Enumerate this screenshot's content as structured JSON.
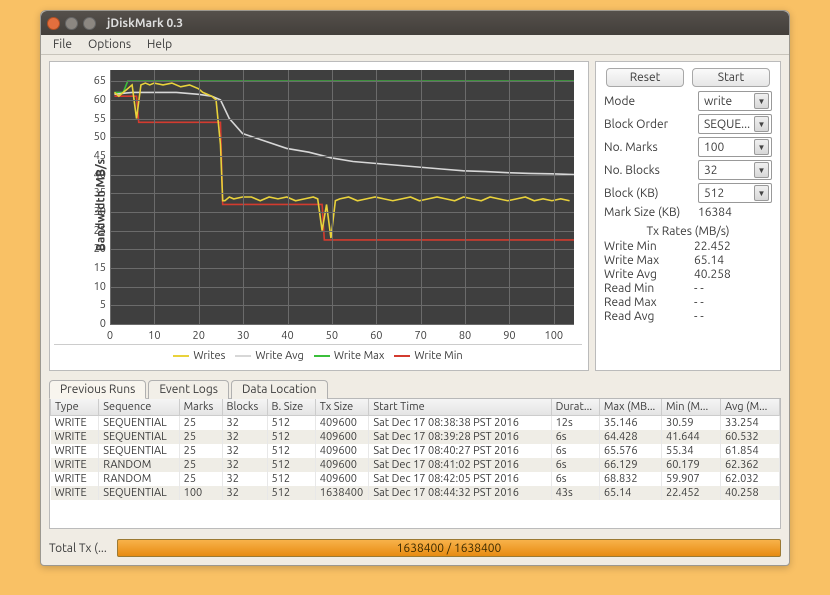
{
  "window": {
    "title": "jDiskMark 0.3"
  },
  "menu": {
    "file": "File",
    "options": "Options",
    "help": "Help"
  },
  "buttons": {
    "reset": "Reset",
    "start": "Start"
  },
  "form": {
    "mode_label": "Mode",
    "mode_value": "write",
    "block_order_label": "Block Order",
    "block_order_value": "SEQUE...",
    "no_marks_label": "No. Marks",
    "no_marks_value": "100",
    "no_blocks_label": "No. Blocks",
    "no_blocks_value": "32",
    "block_kb_label": "Block (KB)",
    "block_kb_value": "512",
    "mark_size_label": "Mark Size (KB)",
    "mark_size_value": "16384"
  },
  "rates": {
    "heading": "Tx Rates (MB/s)",
    "write_min_k": "Write Min",
    "write_min_v": "22.452",
    "write_max_k": "Write Max",
    "write_max_v": "65.14",
    "write_avg_k": "Write Avg",
    "write_avg_v": "40.258",
    "read_min_k": "Read Min",
    "read_min_v": "- -",
    "read_max_k": "Read Max",
    "read_max_v": "- -",
    "read_avg_k": "Read Avg",
    "read_avg_v": "- -"
  },
  "tabs": {
    "prev": "Previous Runs",
    "logs": "Event Logs",
    "loc": "Data Location"
  },
  "table": {
    "cols": [
      "Type",
      "Sequence",
      "Marks",
      "Blocks",
      "B. Size",
      "Tx Size",
      "Start Time",
      "Durat...",
      "Max (MB...",
      "Min (M...",
      "Avg (M..."
    ],
    "widths": [
      45,
      75,
      40,
      42,
      45,
      50,
      170,
      45,
      58,
      55,
      55
    ],
    "rows": [
      [
        "WRITE",
        "SEQUENTIAL",
        "25",
        "32",
        "512",
        "409600",
        "Sat Dec 17 08:38:38 PST 2016",
        "12s",
        "35.146",
        "30.59",
        "33.254"
      ],
      [
        "WRITE",
        "SEQUENTIAL",
        "25",
        "32",
        "512",
        "409600",
        "Sat Dec 17 08:39:28 PST 2016",
        "6s",
        "64.428",
        "41.644",
        "60.532"
      ],
      [
        "WRITE",
        "SEQUENTIAL",
        "25",
        "32",
        "512",
        "409600",
        "Sat Dec 17 08:40:27 PST 2016",
        "6s",
        "65.576",
        "55.34",
        "61.854"
      ],
      [
        "WRITE",
        "RANDOM",
        "25",
        "32",
        "512",
        "409600",
        "Sat Dec 17 08:41:02 PST 2016",
        "6s",
        "66.129",
        "60.179",
        "62.362"
      ],
      [
        "WRITE",
        "RANDOM",
        "25",
        "32",
        "512",
        "409600",
        "Sat Dec 17 08:42:05 PST 2016",
        "6s",
        "68.832",
        "59.907",
        "62.032"
      ],
      [
        "WRITE",
        "SEQUENTIAL",
        "100",
        "32",
        "512",
        "1638400",
        "Sat Dec 17 08:44:32 PST 2016",
        "43s",
        "65.14",
        "22.452",
        "40.258"
      ]
    ]
  },
  "progress": {
    "label": "Total Tx (...",
    "text": "1638400 / 1638400"
  },
  "chart": {
    "type": "line",
    "ylabel": "Bandwidth MB/s",
    "background_color": "#3f3f3f",
    "grid_color": "#6b6b6b",
    "xlim": [
      0,
      105
    ],
    "ylim": [
      0,
      68
    ],
    "yticks": [
      0,
      5,
      10,
      15,
      20,
      25,
      30,
      35,
      40,
      45,
      50,
      55,
      60,
      65
    ],
    "xticks": [
      0,
      10,
      20,
      30,
      40,
      50,
      60,
      70,
      80,
      90,
      100
    ],
    "line_width": 1.6,
    "series": {
      "writes": {
        "label": "Writes",
        "color": "#e9d23b"
      },
      "writeavg": {
        "label": "Write Avg",
        "color": "#d7d7d7"
      },
      "writemax": {
        "label": "Write Max",
        "color": "#3bbf3b"
      },
      "writemin": {
        "label": "Write Min",
        "color": "#d33b2f"
      }
    },
    "writemax_points": [
      [
        1,
        62
      ],
      [
        3,
        62
      ],
      [
        4,
        65
      ],
      [
        105,
        65
      ]
    ],
    "writemin_points": [
      [
        1,
        61
      ],
      [
        6,
        61
      ],
      [
        6.5,
        54
      ],
      [
        25,
        54
      ],
      [
        25.5,
        32
      ],
      [
        48,
        32
      ],
      [
        48.5,
        22.5
      ],
      [
        105,
        22.5
      ]
    ],
    "writeavg_points": [
      [
        1,
        61.5
      ],
      [
        5,
        62
      ],
      [
        10,
        62
      ],
      [
        15,
        62
      ],
      [
        20,
        61.5
      ],
      [
        23,
        61
      ],
      [
        25,
        60
      ],
      [
        27,
        55
      ],
      [
        30,
        51
      ],
      [
        35,
        49
      ],
      [
        40,
        47
      ],
      [
        45,
        46
      ],
      [
        50,
        44.5
      ],
      [
        55,
        43.5
      ],
      [
        60,
        43
      ],
      [
        65,
        42.5
      ],
      [
        70,
        42
      ],
      [
        75,
        41.5
      ],
      [
        80,
        41
      ],
      [
        85,
        40.8
      ],
      [
        90,
        40.5
      ],
      [
        95,
        40.3
      ],
      [
        100,
        40.2
      ],
      [
        105,
        40
      ]
    ],
    "writes_points": [
      [
        1,
        62
      ],
      [
        2,
        61
      ],
      [
        3,
        62
      ],
      [
        4,
        63
      ],
      [
        5,
        64
      ],
      [
        6,
        55
      ],
      [
        7,
        64
      ],
      [
        8,
        64.5
      ],
      [
        9,
        64
      ],
      [
        10,
        64.5
      ],
      [
        12,
        64
      ],
      [
        14,
        64.5
      ],
      [
        16,
        63.5
      ],
      [
        18,
        64
      ],
      [
        20,
        63
      ],
      [
        21,
        62
      ],
      [
        22,
        61.5
      ],
      [
        23,
        61
      ],
      [
        24,
        60
      ],
      [
        25,
        48
      ],
      [
        25.5,
        33
      ],
      [
        26,
        33
      ],
      [
        27,
        34
      ],
      [
        28,
        33.5
      ],
      [
        30,
        34
      ],
      [
        32,
        34
      ],
      [
        34,
        33
      ],
      [
        36,
        34
      ],
      [
        38,
        33.5
      ],
      [
        40,
        34
      ],
      [
        42,
        33
      ],
      [
        44,
        33.5
      ],
      [
        46,
        34
      ],
      [
        47,
        33.5
      ],
      [
        48,
        25
      ],
      [
        49,
        32
      ],
      [
        50,
        23
      ],
      [
        51,
        33
      ],
      [
        52,
        33.5
      ],
      [
        54,
        34
      ],
      [
        56,
        33
      ],
      [
        58,
        33.5
      ],
      [
        60,
        34
      ],
      [
        62,
        33.5
      ],
      [
        64,
        33
      ],
      [
        66,
        33.5
      ],
      [
        68,
        34
      ],
      [
        70,
        33
      ],
      [
        72,
        33.5
      ],
      [
        74,
        34
      ],
      [
        76,
        33.5
      ],
      [
        78,
        33
      ],
      [
        80,
        34
      ],
      [
        82,
        33.5
      ],
      [
        84,
        33
      ],
      [
        86,
        34
      ],
      [
        88,
        33.5
      ],
      [
        90,
        33
      ],
      [
        92,
        33.5
      ],
      [
        94,
        34
      ],
      [
        96,
        33
      ],
      [
        98,
        33.5
      ],
      [
        100,
        33
      ],
      [
        102,
        33.5
      ],
      [
        104,
        33
      ]
    ]
  }
}
